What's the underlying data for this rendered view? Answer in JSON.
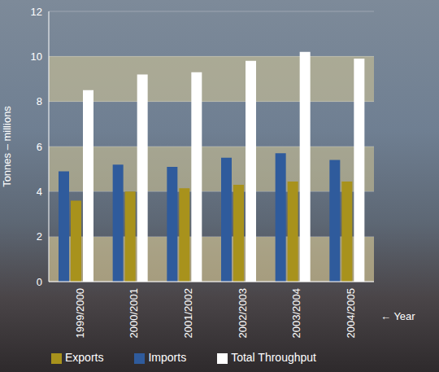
{
  "chart_data": {
    "type": "bar",
    "categories": [
      "1999/2000",
      "2000/2001",
      "2001/2002",
      "2002/2003",
      "2003/2004",
      "2004/2005"
    ],
    "series": [
      {
        "name": "Imports",
        "color": "#2f5b9c",
        "values": [
          4.9,
          5.2,
          5.1,
          5.5,
          5.7,
          5.4
        ]
      },
      {
        "name": "Exports",
        "color": "#a8921c",
        "values": [
          3.6,
          4.0,
          4.15,
          4.3,
          4.45,
          4.45
        ]
      },
      {
        "name": "Total Throughput",
        "color": "#ffffff",
        "values": [
          8.5,
          9.2,
          9.3,
          9.8,
          10.2,
          9.9
        ]
      }
    ],
    "x_label": "← Year",
    "y_label": "Tonnes – millions",
    "ylim": [
      0,
      12
    ],
    "yticks": [
      0,
      2,
      4,
      6,
      8,
      10,
      12
    ],
    "grid": true,
    "legend": "bottom"
  }
}
